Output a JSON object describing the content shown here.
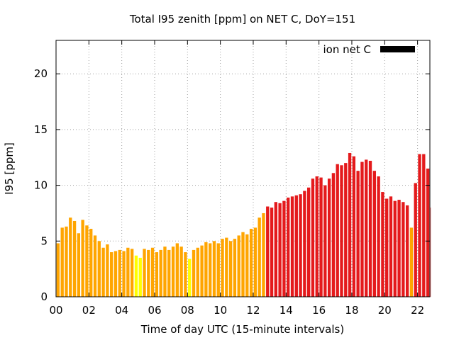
{
  "chart_data": {
    "type": "bar",
    "title": "Total I95 zenith [ppm] on NET C, DoY=151",
    "xlabel": "Time of day UTC (15-minute intervals)",
    "ylabel": "I95 [ppm]",
    "xlim": [
      0,
      22.75
    ],
    "ylim": [
      0,
      23
    ],
    "x_ticks": [
      "00",
      "02",
      "04",
      "06",
      "08",
      "10",
      "12",
      "14",
      "16",
      "18",
      "20",
      "22"
    ],
    "y_ticks": [
      "0",
      "5",
      "10",
      "15",
      "20"
    ],
    "grid": true,
    "legend_position": "top-right",
    "bar_interval_hours": 0.25,
    "colors": {
      "low": "#ffa500",
      "very_low": "#ffff00",
      "high": "#e41a1c",
      "legend": "#000000"
    },
    "series": [
      {
        "name": "ion net C",
        "values": [
          4.8,
          6.2,
          6.3,
          7.1,
          6.8,
          5.7,
          6.9,
          6.4,
          6.1,
          5.5,
          5.0,
          4.4,
          4.7,
          4.0,
          4.1,
          4.2,
          4.1,
          4.4,
          4.3,
          3.7,
          3.5,
          4.3,
          4.2,
          4.4,
          4.0,
          4.2,
          4.5,
          4.2,
          4.5,
          4.8,
          4.5,
          4.0,
          3.4,
          4.2,
          4.4,
          4.6,
          4.9,
          4.8,
          5.0,
          4.8,
          5.2,
          5.3,
          5.0,
          5.2,
          5.5,
          5.8,
          5.6,
          6.1,
          6.2,
          7.1,
          7.5,
          8.1,
          8.0,
          8.5,
          8.4,
          8.6,
          8.9,
          9.0,
          9.1,
          9.2,
          9.5,
          9.8,
          10.6,
          10.8,
          10.7,
          10.0,
          10.6,
          11.1,
          11.9,
          11.8,
          12.0,
          12.9,
          12.6,
          11.3,
          12.1,
          12.3,
          12.2,
          11.3,
          10.8,
          9.4,
          8.8,
          9.0,
          8.6,
          8.7,
          8.5,
          8.2,
          6.2,
          10.2,
          12.8,
          12.8,
          11.5,
          8.0
        ],
        "color_class": [
          "low",
          "low",
          "low",
          "low",
          "low",
          "low",
          "low",
          "low",
          "low",
          "low",
          "low",
          "low",
          "low",
          "low",
          "low",
          "low",
          "low",
          "low",
          "low",
          "very_low",
          "very_low",
          "low",
          "low",
          "low",
          "low",
          "low",
          "low",
          "low",
          "low",
          "low",
          "low",
          "low",
          "very_low",
          "low",
          "low",
          "low",
          "low",
          "low",
          "low",
          "low",
          "low",
          "low",
          "low",
          "low",
          "low",
          "low",
          "low",
          "low",
          "low",
          "low",
          "low",
          "high",
          "high",
          "high",
          "high",
          "high",
          "high",
          "high",
          "high",
          "high",
          "high",
          "high",
          "high",
          "high",
          "high",
          "high",
          "high",
          "high",
          "high",
          "high",
          "high",
          "high",
          "high",
          "high",
          "high",
          "high",
          "high",
          "high",
          "high",
          "high",
          "high",
          "high",
          "high",
          "high",
          "high",
          "high",
          "low",
          "high",
          "high",
          "high",
          "high",
          "high"
        ]
      }
    ]
  }
}
